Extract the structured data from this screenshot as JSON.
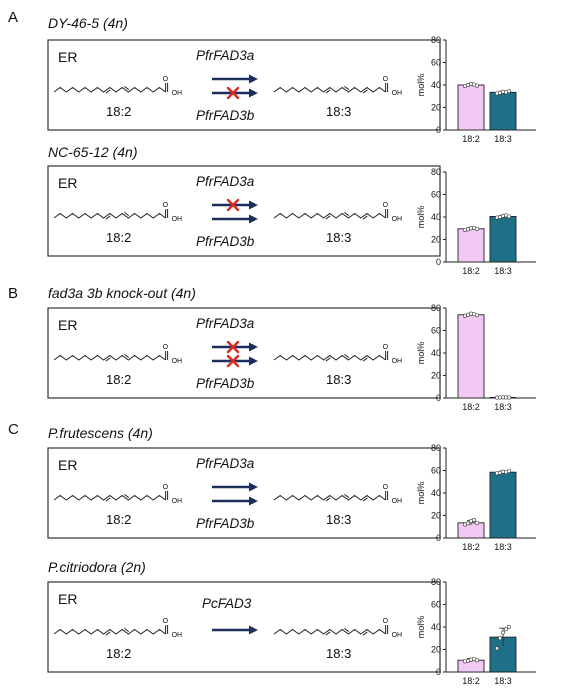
{
  "colors": {
    "c18_2": "#f2c9f2",
    "c18_3": "#1e7088",
    "arrow": "#1f2f5c",
    "cross": "#e0261d"
  },
  "panels": [
    {
      "letter": "A",
      "title": "DY-46-5 (4n)",
      "compartment": "ER",
      "enzymes": [
        "PfrFAD3a",
        "PfrFAD3b"
      ],
      "blocked": [
        false,
        true
      ],
      "substrate": "18:2",
      "product": "18:3",
      "oh": "OH"
    },
    {
      "letter": "",
      "title": "NC-65-12 (4n)",
      "compartment": "ER",
      "enzymes": [
        "PfrFAD3a",
        "PfrFAD3b"
      ],
      "blocked": [
        true,
        false
      ],
      "substrate": "18:2",
      "product": "18:3",
      "oh": "OH"
    },
    {
      "letter": "B",
      "title": "fad3a 3b knock-out (4n)",
      "compartment": "ER",
      "enzymes": [
        "PfrFAD3a",
        "PfrFAD3b"
      ],
      "blocked": [
        true,
        true
      ],
      "substrate": "18:2",
      "product": "18:3",
      "oh": "OH"
    },
    {
      "letter": "C",
      "title": "P.frutescens (4n)",
      "compartment": "ER",
      "enzymes": [
        "PfrFAD3a",
        "PfrFAD3b"
      ],
      "blocked": [
        false,
        false
      ],
      "substrate": "18:2",
      "product": "18:3",
      "oh": "OH"
    },
    {
      "letter": "",
      "title": "P.citriodora (2n)",
      "compartment": "ER",
      "enzymes": [
        "PcFAD3"
      ],
      "blocked": [
        false
      ],
      "substrate": "18:2",
      "product": "18:3",
      "oh": "OH"
    }
  ],
  "chart_data": [
    {
      "type": "bar",
      "categories": [
        "18:2",
        "18:3"
      ],
      "values": [
        40,
        33.5
      ],
      "points": [
        [
          39,
          40,
          41,
          40.5,
          39.5
        ],
        [
          32.5,
          33,
          34,
          33.5,
          34.5
        ]
      ],
      "ylabel": "mol%",
      "ylim": [
        0,
        80
      ],
      "yticks": [
        "0",
        "20",
        "40",
        "60",
        "80"
      ],
      "error": [
        1,
        1
      ]
    },
    {
      "type": "bar",
      "categories": [
        "18:2",
        "18:3"
      ],
      "values": [
        29.5,
        40.5
      ],
      "points": [
        [
          28.5,
          29,
          30,
          30.5,
          29.5
        ],
        [
          39.5,
          40,
          41,
          41.5,
          40.5
        ]
      ],
      "ylabel": "mol%",
      "ylim": [
        0,
        80
      ],
      "yticks": [
        "0",
        "20",
        "40",
        "60",
        "80"
      ],
      "error": [
        1,
        1
      ]
    },
    {
      "type": "bar",
      "categories": [
        "18:2",
        "18:3"
      ],
      "values": [
        74,
        0.5
      ],
      "points": [
        [
          73,
          74,
          75,
          74.5,
          73.5
        ],
        [
          0.3,
          0.5,
          0.6,
          0.4,
          0.5
        ]
      ],
      "ylabel": "mol%",
      "ylim": [
        0,
        80
      ],
      "yticks": [
        "0",
        "20",
        "40",
        "60",
        "80"
      ],
      "error": [
        1,
        0.3
      ]
    },
    {
      "type": "bar",
      "categories": [
        "18:2",
        "18:3"
      ],
      "values": [
        13.5,
        58.5
      ],
      "points": [
        [
          12,
          13,
          15,
          16,
          13.5
        ],
        [
          57.5,
          58,
          59,
          58.5,
          59.5
        ]
      ],
      "ylabel": "mol%",
      "ylim": [
        0,
        80
      ],
      "yticks": [
        "0",
        "20",
        "40",
        "60",
        "80"
      ],
      "error": [
        2,
        1
      ]
    },
    {
      "type": "bar",
      "categories": [
        "18:2",
        "18:3"
      ],
      "values": [
        10.5,
        31
      ],
      "points": [
        [
          9.5,
          10,
          11,
          11.5,
          10.5
        ],
        [
          21,
          30,
          35,
          38,
          40
        ]
      ],
      "ylabel": "mol%",
      "ylim": [
        0,
        80
      ],
      "yticks": [
        "0",
        "20",
        "40",
        "60",
        "80"
      ],
      "error": [
        1.5,
        8
      ]
    }
  ]
}
